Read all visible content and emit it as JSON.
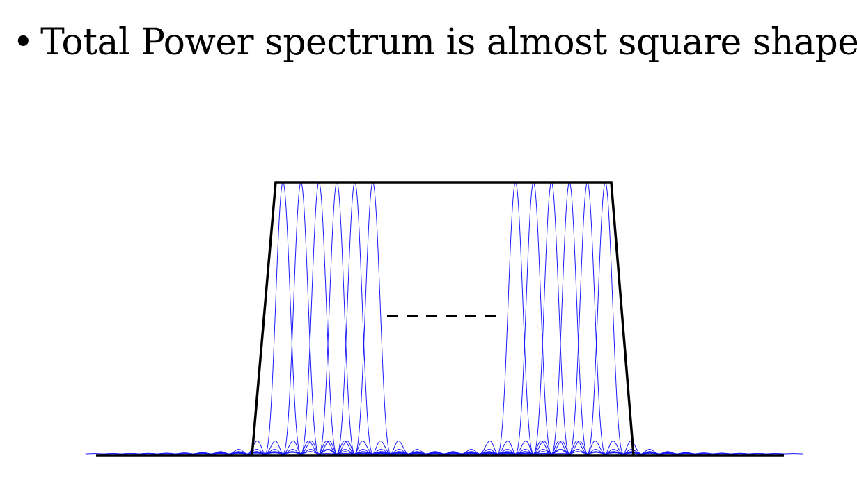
{
  "slide": {
    "bullet": "•",
    "title": "Total Power spectrum is almost square shape"
  },
  "colors": {
    "envelope": "#000000",
    "subcarrier": "#1a1aff",
    "baseline": "#000000",
    "background": "#ffffff"
  },
  "diagram": {
    "left_group_subcarrier_count": 6,
    "right_group_subcarrier_count": 6,
    "ellipsis_shape": "dashed-line"
  }
}
